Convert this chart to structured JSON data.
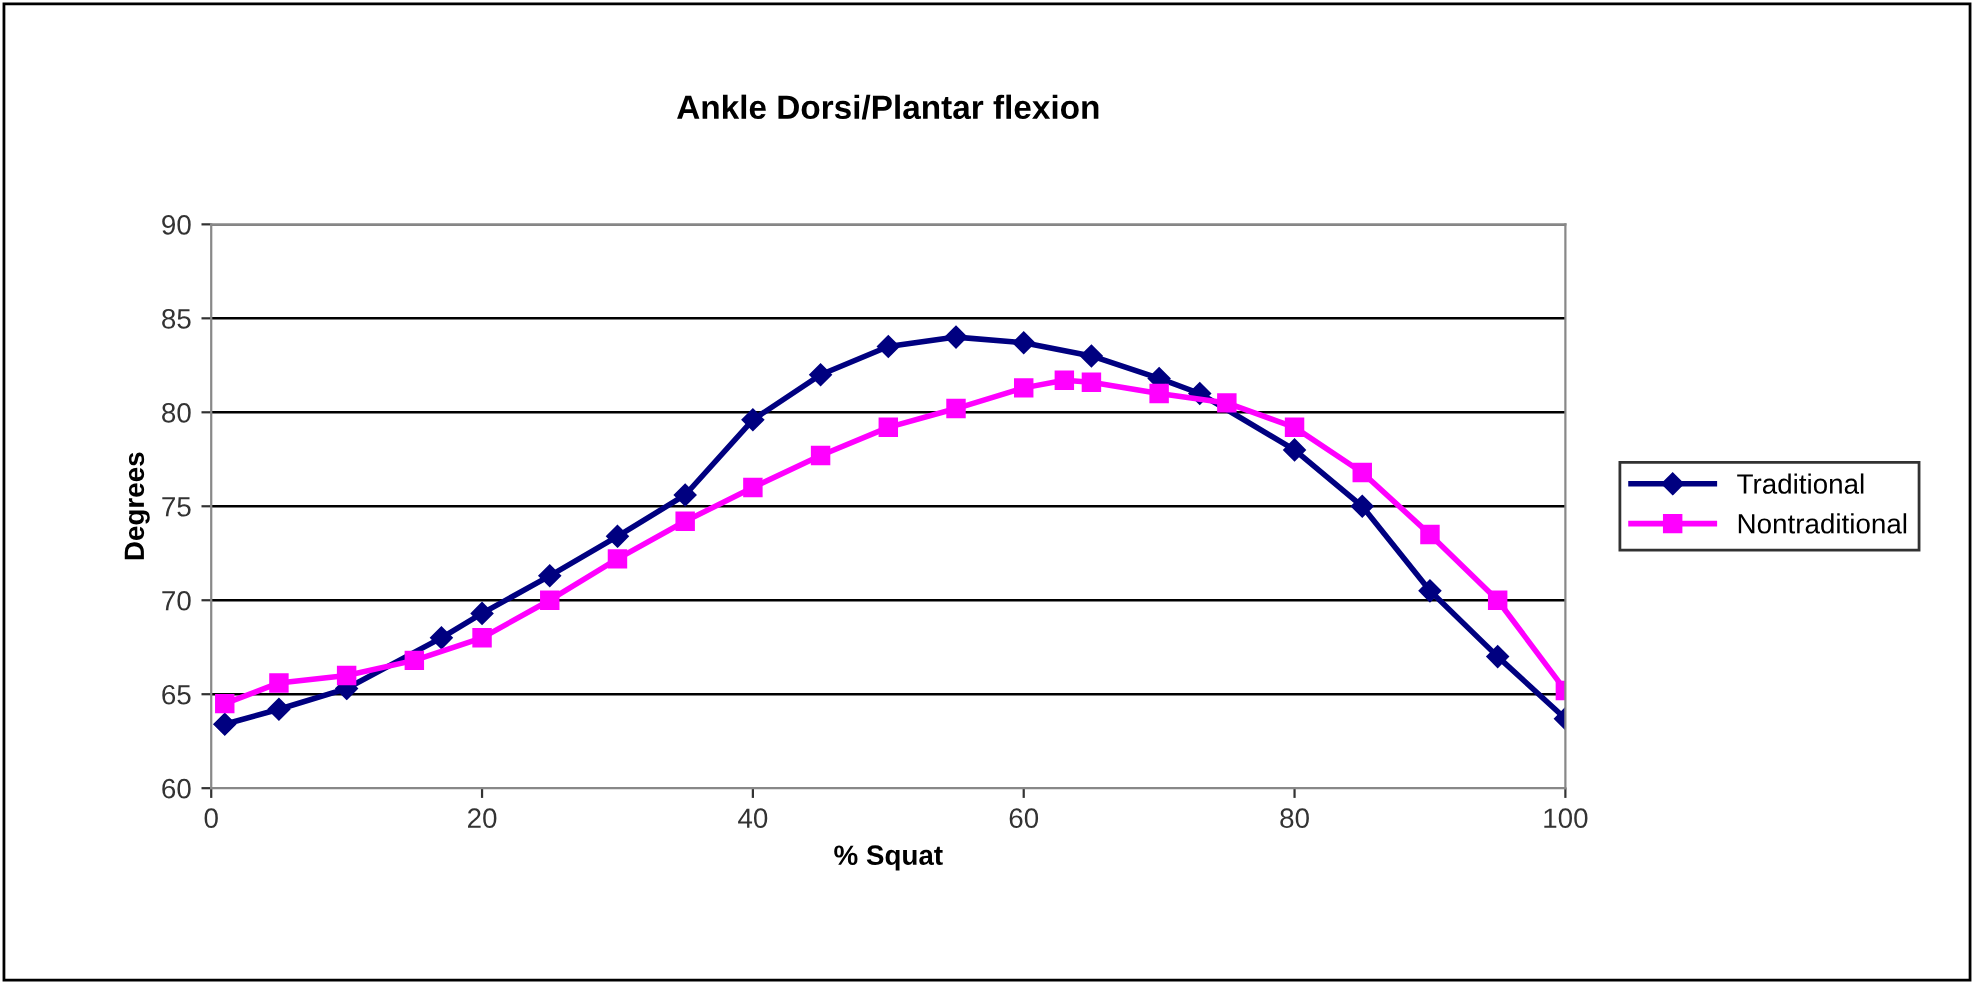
{
  "chart_data": {
    "type": "line",
    "title": "Ankle Dorsi/Plantar flexion",
    "xlabel": "% Squat",
    "ylabel": "Degrees",
    "xlim": [
      0,
      100
    ],
    "xticks": [
      0,
      20,
      40,
      60,
      80,
      100
    ],
    "ylim": [
      60,
      90
    ],
    "yticks": [
      60,
      65,
      70,
      75,
      80,
      85,
      90
    ],
    "grid": "y",
    "legend": "right",
    "series": [
      {
        "name": "Traditional",
        "color": "#000080",
        "marker": "diamond",
        "x": [
          1,
          5,
          10,
          17,
          20,
          25,
          30,
          35,
          40,
          45,
          50,
          55,
          60,
          65,
          70,
          73,
          80,
          85,
          90,
          95,
          100
        ],
        "values": [
          63.4,
          64.2,
          65.3,
          68,
          69.3,
          71.3,
          73.4,
          75.6,
          79.6,
          82,
          83.5,
          84,
          83.7,
          83,
          81.8,
          81,
          78,
          75,
          70.5,
          67,
          63.7
        ]
      },
      {
        "name": "Nontraditional",
        "color": "#ff00ff",
        "marker": "square",
        "x": [
          1,
          5,
          10,
          15,
          20,
          25,
          30,
          35,
          40,
          45,
          50,
          55,
          60,
          63,
          65,
          70,
          75,
          80,
          85,
          90,
          95,
          100
        ],
        "values": [
          64.5,
          65.6,
          66,
          66.8,
          68,
          70,
          72.2,
          74.2,
          76,
          77.7,
          79.2,
          80.2,
          81.3,
          81.7,
          81.6,
          81,
          80.5,
          79.2,
          76.8,
          73.5,
          70,
          65.2
        ]
      }
    ]
  }
}
